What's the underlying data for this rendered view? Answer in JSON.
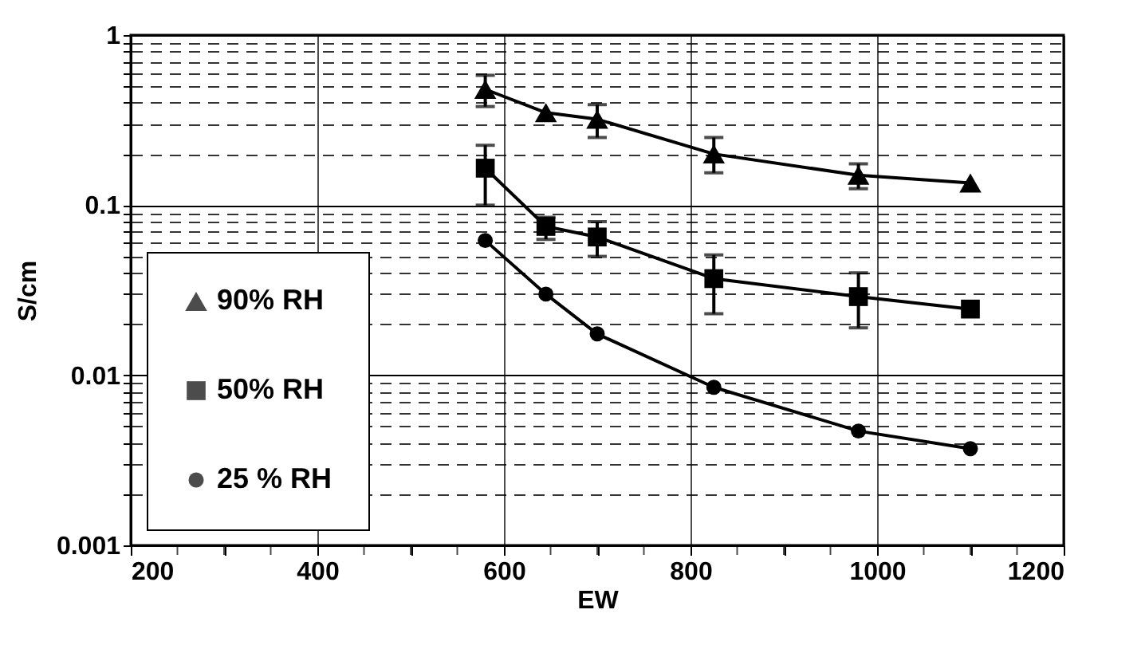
{
  "chart_data": {
    "type": "line",
    "xlabel": "EW",
    "ylabel": "S/cm",
    "log": "y",
    "grid": true,
    "legend": "bottom left",
    "xlim": [
      200,
      1200
    ],
    "xticks": [
      200,
      {
        "value": 250,
        "label": null
      },
      {
        "value": 300,
        "label": null
      },
      {
        "value": 350,
        "label": null
      },
      400,
      {
        "value": 450,
        "label": null
      },
      {
        "value": 500,
        "label": null
      },
      {
        "value": 550,
        "label": null
      },
      600,
      {
        "value": 650,
        "label": null
      },
      {
        "value": 700,
        "label": null
      },
      {
        "value": 750,
        "label": null
      },
      800,
      {
        "value": 850,
        "label": null
      },
      {
        "value": 900,
        "label": null
      },
      {
        "value": 950,
        "label": null
      },
      1000,
      {
        "value": 1050,
        "label": null
      },
      {
        "value": 1100,
        "label": null
      },
      {
        "value": 1150,
        "label": null
      },
      1200
    ],
    "ylim": [
      0.001,
      1
    ],
    "yticks": [
      0.001,
      {
        "value": 0.002,
        "label": null
      },
      {
        "value": 0.003,
        "label": null
      },
      {
        "value": 0.004,
        "label": null
      },
      {
        "value": 0.005,
        "label": null
      },
      {
        "value": 0.006,
        "label": null
      },
      {
        "value": 0.007,
        "label": null
      },
      {
        "value": 0.008,
        "label": null
      },
      {
        "value": 0.009,
        "label": null
      },
      0.01,
      {
        "value": 0.02,
        "label": null
      },
      {
        "value": 0.03,
        "label": null
      },
      {
        "value": 0.04,
        "label": null
      },
      {
        "value": 0.05,
        "label": null
      },
      {
        "value": 0.06,
        "label": null
      },
      {
        "value": 0.07,
        "label": null
      },
      {
        "value": 0.08,
        "label": null
      },
      {
        "value": 0.09,
        "label": null
      },
      0.1,
      {
        "value": 0.2,
        "label": null
      },
      {
        "value": 0.3,
        "label": null
      },
      {
        "value": 0.4,
        "label": null
      },
      {
        "value": 0.5,
        "label": null
      },
      {
        "value": 0.6,
        "label": null
      },
      {
        "value": 0.7,
        "label": null
      },
      {
        "value": 0.8,
        "label": null
      },
      {
        "value": 0.9,
        "label": null
      },
      1
    ],
    "x": [
      580,
      645,
      700,
      825,
      980,
      1100
    ],
    "series": [
      {
        "name": "90% RH",
        "color": "#000000",
        "marker": "triangle",
        "values": [
          0.48,
          0.35,
          0.32,
          0.2,
          0.15,
          0.135
        ],
        "errors": [
          [
            0.38,
            0.58
          ],
          null,
          [
            0.25,
            0.39
          ],
          [
            0.155,
            0.25
          ],
          [
            0.125,
            0.175
          ],
          null
        ]
      },
      {
        "name": "50% RH",
        "color": "#000000",
        "marker": "square",
        "values": [
          0.165,
          0.075,
          0.065,
          0.037,
          0.029,
          0.0245
        ],
        "errors": [
          [
            0.1,
            0.225
          ],
          [
            0.063,
            0.085
          ],
          [
            0.05,
            0.08
          ],
          [
            0.023,
            0.051
          ],
          [
            0.019,
            0.04
          ],
          null
        ]
      },
      {
        "name": "25 % RH",
        "color": "#000000",
        "marker": "circle",
        "values": [
          0.062,
          0.03,
          0.0175,
          0.0085,
          0.0047,
          0.0037
        ]
      }
    ]
  }
}
